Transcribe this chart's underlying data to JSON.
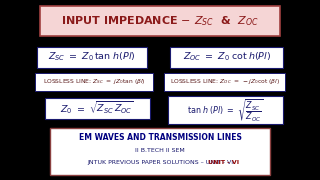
{
  "bg_outer": "#000000",
  "bg_color": "#c8c8c8",
  "title_box_color": "#f5d5d5",
  "title_box_edge": "#a04040",
  "title_color": "#8b1a1a",
  "formula_color": "#1a1a6e",
  "lossless_fg_color": "#5a1a1a",
  "lossless_box_edge": "#1a1a6e",
  "lossless_box_fill": "#ffffff",
  "formula_box_fill": "#ffffff",
  "formula_box_edge": "#1a1a6e",
  "bottom_box_fill": "#ffffff",
  "bottom_box_edge": "#8b4040",
  "bottom_title_color": "#000080",
  "bottom_sub_color": "#1a1a6e",
  "bottom_unit_color": "#8b0000",
  "bottom_title": "EM WAVES AND TRANSMISSION LINES",
  "bottom_line2": "II B.TECH II SEM",
  "bottom_line3_pre": "JNTUK PREVIOUS PAPER SOLUTIONS – ",
  "bottom_unit_label": "UNIT - ",
  "bottom_bold": "VI"
}
